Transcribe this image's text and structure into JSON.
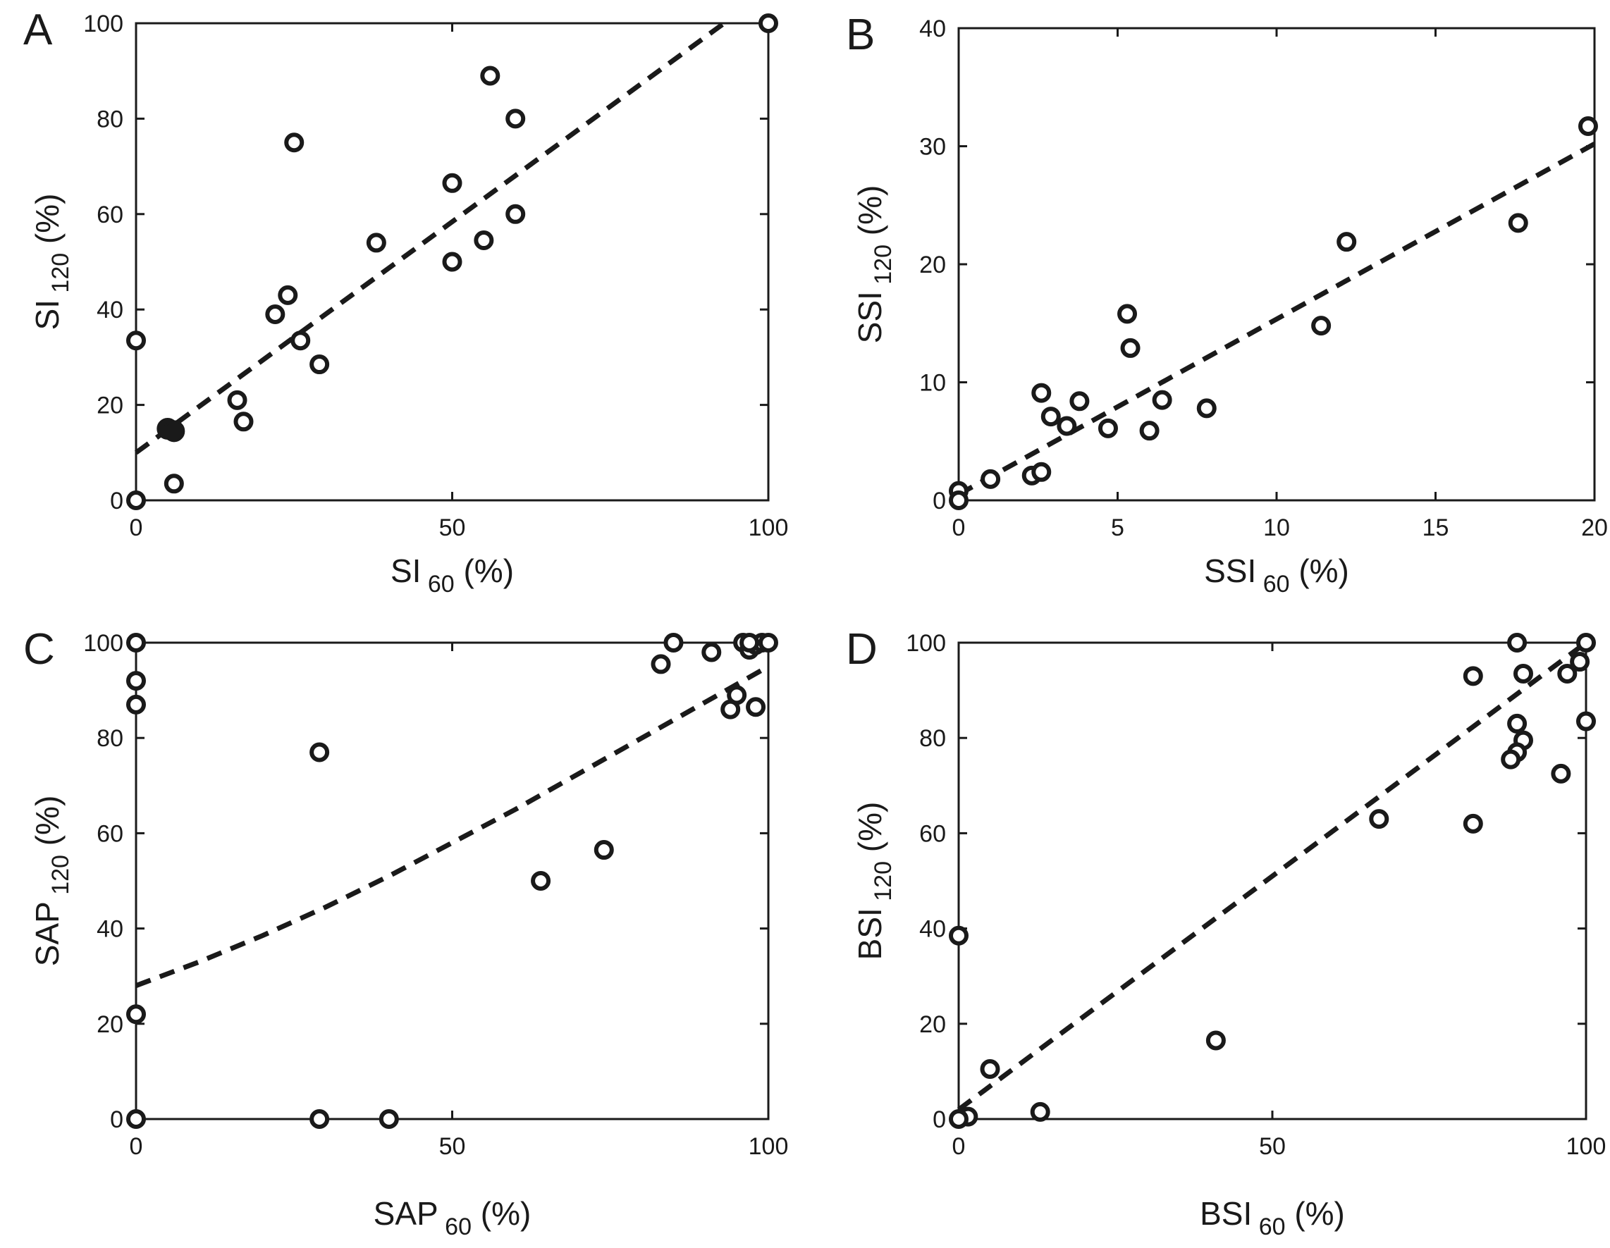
{
  "chart_data": [
    {
      "id": "A",
      "type": "scatter",
      "panel_label": "A",
      "xlabel": "SI",
      "xlabel_sub": "60",
      "xlabel_unit": "(%)",
      "ylabel": "SI",
      "ylabel_sub": "120",
      "ylabel_unit": "(%)",
      "xlim": [
        0,
        100
      ],
      "ylim": [
        0,
        100
      ],
      "xticks": [
        0,
        50,
        100
      ],
      "yticks": [
        0,
        20,
        40,
        60,
        80,
        100
      ],
      "points": [
        [
          100,
          100
        ],
        [
          56,
          89
        ],
        [
          60,
          80
        ],
        [
          25,
          75
        ],
        [
          50,
          66.5
        ],
        [
          38,
          54
        ],
        [
          60,
          60
        ],
        [
          55,
          54.5
        ],
        [
          50,
          50
        ],
        [
          24,
          43
        ],
        [
          22,
          39
        ],
        [
          26,
          33.5
        ],
        [
          29,
          28.5
        ],
        [
          0,
          33.5
        ],
        [
          16,
          21
        ],
        [
          17,
          16.5
        ],
        [
          6,
          3.5
        ],
        [
          0,
          0
        ]
      ],
      "filled_points": [
        [
          5,
          15
        ],
        [
          6,
          14.5
        ]
      ],
      "fit_line": [
        [
          0,
          10
        ],
        [
          93,
          100
        ]
      ]
    },
    {
      "id": "B",
      "type": "scatter",
      "panel_label": "B",
      "xlabel": "SSI",
      "xlabel_sub": "60",
      "xlabel_unit": "(%)",
      "ylabel": "SSI",
      "ylabel_sub": "120",
      "ylabel_unit": "(%)",
      "xlim": [
        0,
        20
      ],
      "ylim": [
        0,
        40
      ],
      "xticks": [
        0,
        5,
        10,
        15,
        20
      ],
      "yticks": [
        0,
        10,
        20,
        30,
        40
      ],
      "points": [
        [
          19.8,
          31.7
        ],
        [
          17.6,
          23.5
        ],
        [
          12.2,
          21.9
        ],
        [
          11.4,
          14.8
        ],
        [
          5.3,
          15.8
        ],
        [
          5.4,
          12.9
        ],
        [
          2.6,
          9.1
        ],
        [
          3.8,
          8.4
        ],
        [
          6.4,
          8.5
        ],
        [
          2.9,
          7.1
        ],
        [
          7.8,
          7.8
        ],
        [
          3.4,
          6.3
        ],
        [
          4.7,
          6.1
        ],
        [
          6.0,
          5.9
        ],
        [
          2.3,
          2.1
        ],
        [
          2.6,
          2.4
        ],
        [
          1.0,
          1.8
        ],
        [
          0,
          0.8
        ],
        [
          0,
          0
        ]
      ],
      "filled_points": [],
      "fit_line": [
        [
          0,
          0.5
        ],
        [
          20,
          30.2
        ]
      ]
    },
    {
      "id": "C",
      "type": "scatter",
      "panel_label": "C",
      "xlabel": "SAP",
      "xlabel_sub": "60",
      "xlabel_unit": "(%)",
      "ylabel": "SAP",
      "ylabel_sub": "120",
      "ylabel_unit": "(%)",
      "xlim": [
        0,
        100
      ],
      "ylim": [
        0,
        100
      ],
      "xticks": [
        0,
        50,
        100
      ],
      "yticks": [
        0,
        20,
        40,
        60,
        80,
        100
      ],
      "points": [
        [
          0,
          100
        ],
        [
          0,
          92
        ],
        [
          0,
          87
        ],
        [
          29,
          77
        ],
        [
          0,
          22
        ],
        [
          0,
          0
        ],
        [
          29,
          0
        ],
        [
          40,
          0
        ],
        [
          64,
          50
        ],
        [
          74,
          56.5
        ],
        [
          83,
          95.5
        ],
        [
          85,
          100
        ],
        [
          91,
          98
        ],
        [
          94,
          86
        ],
        [
          95,
          89
        ],
        [
          96,
          100
        ],
        [
          97,
          98.5
        ],
        [
          98,
          99.5
        ],
        [
          98,
          86.5
        ],
        [
          99,
          100
        ],
        [
          100,
          100
        ],
        [
          97,
          100
        ]
      ],
      "filled_points": [],
      "fit_curve": [
        [
          0,
          28
        ],
        [
          10,
          33
        ],
        [
          20,
          38.5
        ],
        [
          30,
          44.5
        ],
        [
          40,
          51
        ],
        [
          50,
          58
        ],
        [
          60,
          65
        ],
        [
          70,
          72.5
        ],
        [
          80,
          80
        ],
        [
          90,
          87.5
        ],
        [
          100,
          95
        ]
      ]
    },
    {
      "id": "D",
      "type": "scatter",
      "panel_label": "D",
      "xlabel": "BSI",
      "xlabel_sub": "60",
      "xlabel_unit": "(%)",
      "ylabel": "BSI",
      "ylabel_sub": "120",
      "ylabel_unit": "(%)",
      "xlim": [
        0,
        100
      ],
      "ylim": [
        0,
        100
      ],
      "xticks": [
        0,
        50,
        100
      ],
      "yticks": [
        0,
        20,
        40,
        60,
        80,
        100
      ],
      "points": [
        [
          89,
          100
        ],
        [
          100,
          100
        ],
        [
          99,
          96
        ],
        [
          97,
          93.5
        ],
        [
          90,
          93.5
        ],
        [
          82,
          93
        ],
        [
          89,
          83
        ],
        [
          100,
          83.5
        ],
        [
          90,
          79.5
        ],
        [
          89,
          77
        ],
        [
          88,
          75.5
        ],
        [
          96,
          72.5
        ],
        [
          67,
          63
        ],
        [
          82,
          62
        ],
        [
          0,
          38.5
        ],
        [
          41,
          16.5
        ],
        [
          5,
          10.5
        ],
        [
          13,
          1.5
        ],
        [
          1.5,
          0.5
        ],
        [
          0,
          0
        ]
      ],
      "filled_points": [],
      "fit_line": [
        [
          0,
          2
        ],
        [
          100,
          100
        ]
      ]
    }
  ]
}
